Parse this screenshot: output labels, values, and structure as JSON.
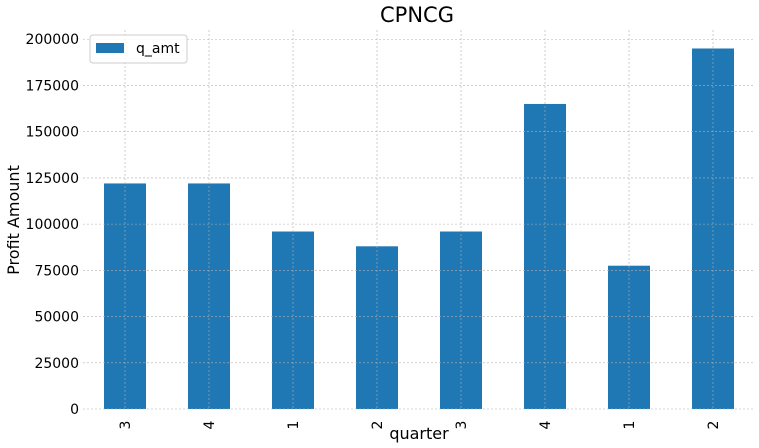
{
  "chart_data": {
    "type": "bar",
    "title": "CPNCG",
    "xlabel": "quarter",
    "ylabel": "Profit Amount",
    "categories": [
      "3",
      "4",
      "1",
      "2",
      "3",
      "4",
      "1",
      "2"
    ],
    "series": [
      {
        "name": "q_amt",
        "values": [
          122000,
          122000,
          96000,
          88000,
          96000,
          165000,
          77500,
          195000
        ],
        "color": "#1f77b4"
      }
    ],
    "ylim": [
      0,
      205000
    ],
    "yticks": [
      0,
      25000,
      50000,
      75000,
      100000,
      125000,
      150000,
      175000,
      200000
    ],
    "ytick_labels": [
      "0",
      "25000",
      "50000",
      "75000",
      "100000",
      "125000",
      "150000",
      "175000",
      "200000"
    ],
    "grid": true,
    "legend_position": "top-left"
  }
}
